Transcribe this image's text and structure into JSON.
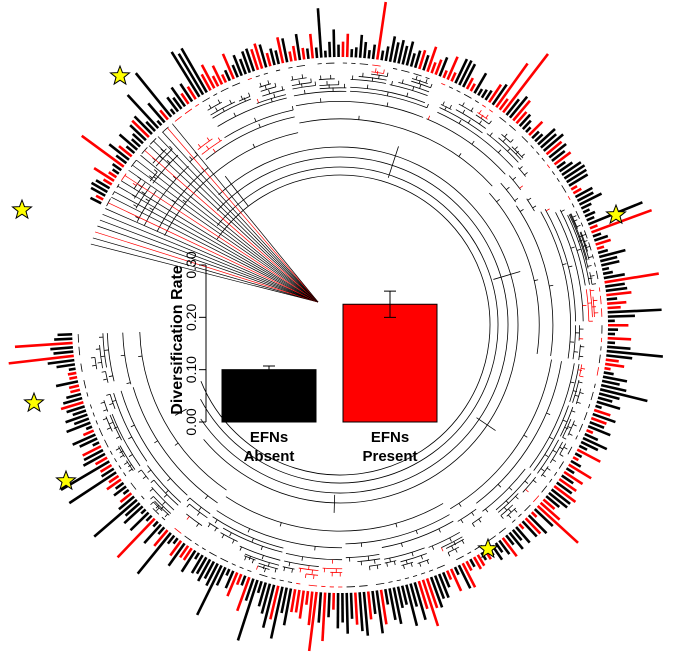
{
  "chart_data": {
    "type": "bar",
    "ylabel": "Diversification Rate",
    "ylim": [
      0,
      0.3
    ],
    "yticks": [
      "0.00",
      "0.10",
      "0.20",
      "0.30"
    ],
    "categories": [
      {
        "line1": "EFNs",
        "line2": "Absent"
      },
      {
        "line1": "EFNs",
        "line2": "Present"
      }
    ],
    "values": [
      0.1,
      0.225
    ],
    "errors": [
      0.007,
      0.025
    ],
    "bar_colors": [
      "#000000",
      "#ff0000"
    ],
    "background_tree": {
      "type": "circular-phylogeny-with-trait-bars",
      "lineage_colors": {
        "efn_present": "#ff0000",
        "efn_absent": "#000000"
      },
      "marker": "star",
      "marker_color": "#ffff00",
      "marker_count": 6
    }
  }
}
